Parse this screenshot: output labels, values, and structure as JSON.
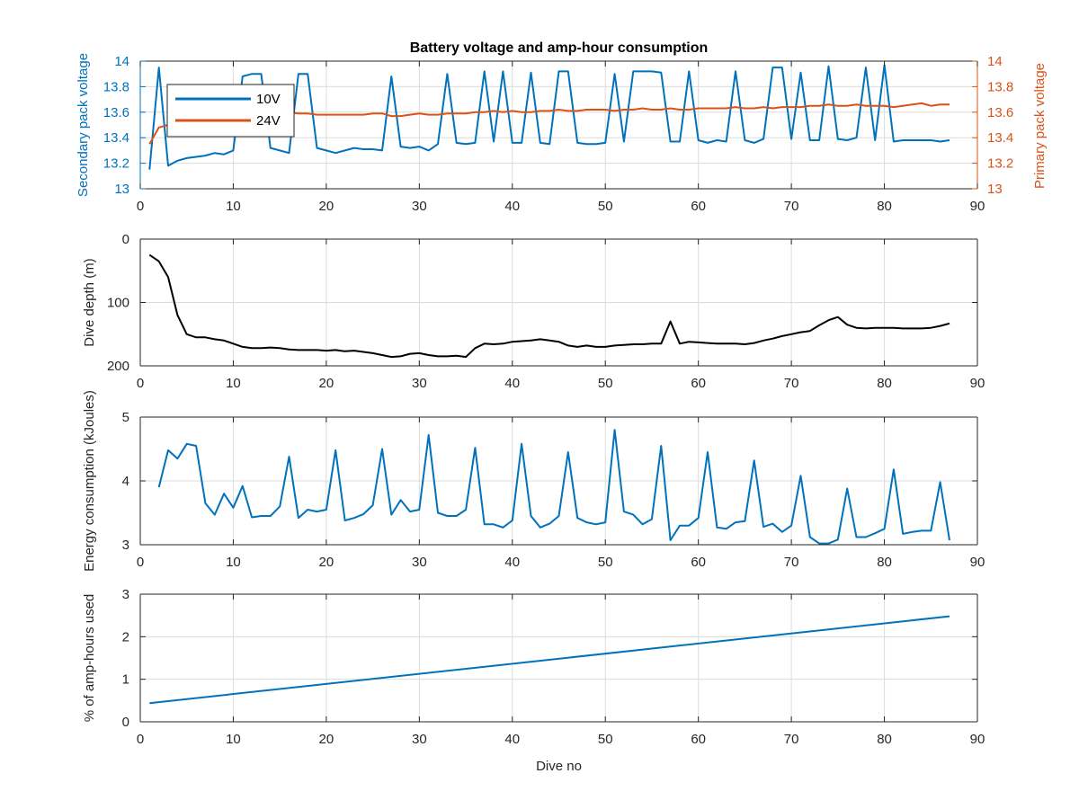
{
  "colors": {
    "series_10v": "#0072BD",
    "series_24v": "#D95319",
    "depth_line": "#000000",
    "axis": "#262626",
    "grid": "#dcdcdc",
    "background": "#ffffff"
  },
  "chart_data": [
    {
      "id": "voltage",
      "type": "line",
      "title": "Battery voltage and amp-hour consumption",
      "xlabel": "",
      "ylabel": "Secondary pack voltage",
      "ylabel_right": "Primary pack voltage",
      "xlim": [
        0,
        90
      ],
      "ylim": [
        13,
        14
      ],
      "ylim_right": [
        13,
        14
      ],
      "xticks": [
        0,
        10,
        20,
        30,
        40,
        50,
        60,
        70,
        80,
        90
      ],
      "yticks": [
        13,
        13.2,
        13.4,
        13.6,
        13.8,
        14
      ],
      "yticks_right": [
        13,
        13.2,
        13.4,
        13.6,
        13.8,
        14
      ],
      "grid": true,
      "legend": "top-left",
      "series": [
        {
          "name": "10V",
          "color": "#0072BD",
          "axis": "left",
          "x": [
            1,
            2,
            3,
            4,
            5,
            6,
            7,
            8,
            9,
            10,
            11,
            12,
            13,
            14,
            15,
            16,
            17,
            18,
            19,
            20,
            21,
            22,
            23,
            24,
            25,
            26,
            27,
            28,
            29,
            30,
            31,
            32,
            33,
            34,
            35,
            36,
            37,
            38,
            39,
            40,
            41,
            42,
            43,
            44,
            45,
            46,
            47,
            48,
            49,
            50,
            51,
            52,
            53,
            54,
            55,
            56,
            57,
            58,
            59,
            60,
            61,
            62,
            63,
            64,
            65,
            66,
            67,
            68,
            69,
            70,
            71,
            72,
            73,
            74,
            75,
            76,
            77,
            78,
            79,
            80,
            81,
            82,
            83,
            84,
            85,
            86,
            87
          ],
          "y": [
            13.15,
            13.95,
            13.18,
            13.22,
            13.24,
            13.25,
            13.26,
            13.28,
            13.27,
            13.3,
            13.88,
            13.9,
            13.9,
            13.32,
            13.3,
            13.28,
            13.9,
            13.9,
            13.32,
            13.3,
            13.28,
            13.3,
            13.32,
            13.31,
            13.31,
            13.3,
            13.88,
            13.33,
            13.32,
            13.33,
            13.3,
            13.35,
            13.9,
            13.36,
            13.35,
            13.36,
            13.92,
            13.37,
            13.92,
            13.36,
            13.36,
            13.91,
            13.36,
            13.35,
            13.92,
            13.92,
            13.36,
            13.35,
            13.35,
            13.36,
            13.9,
            13.37,
            13.92,
            13.92,
            13.92,
            13.91,
            13.37,
            13.37,
            13.92,
            13.38,
            13.36,
            13.38,
            13.37,
            13.92,
            13.38,
            13.36,
            13.39,
            13.95,
            13.95,
            13.39,
            13.91,
            13.38,
            13.38,
            13.96,
            13.39,
            13.38,
            13.4,
            13.95,
            13.38,
            13.97,
            13.37,
            13.38,
            13.38,
            13.38,
            13.38,
            13.37,
            13.38
          ]
        },
        {
          "name": "24V",
          "color": "#D95319",
          "axis": "right",
          "x": [
            1,
            2,
            3,
            4,
            5,
            6,
            7,
            8,
            9,
            10,
            11,
            12,
            13,
            14,
            15,
            16,
            17,
            18,
            19,
            20,
            21,
            22,
            23,
            24,
            25,
            26,
            27,
            28,
            29,
            30,
            31,
            32,
            33,
            34,
            35,
            36,
            37,
            38,
            39,
            40,
            41,
            42,
            43,
            44,
            45,
            46,
            47,
            48,
            49,
            50,
            51,
            52,
            53,
            54,
            55,
            56,
            57,
            58,
            59,
            60,
            61,
            62,
            63,
            64,
            65,
            66,
            67,
            68,
            69,
            70,
            71,
            72,
            73,
            74,
            75,
            76,
            77,
            78,
            79,
            80,
            81,
            82,
            83,
            84,
            85,
            86,
            87
          ],
          "y": [
            13.35,
            13.48,
            13.5,
            13.52,
            13.54,
            13.55,
            13.56,
            13.56,
            13.57,
            13.57,
            13.58,
            13.58,
            13.58,
            13.59,
            13.59,
            13.6,
            13.59,
            13.59,
            13.58,
            13.58,
            13.58,
            13.58,
            13.58,
            13.58,
            13.59,
            13.59,
            13.57,
            13.57,
            13.58,
            13.59,
            13.58,
            13.58,
            13.59,
            13.59,
            13.59,
            13.6,
            13.6,
            13.61,
            13.6,
            13.61,
            13.6,
            13.6,
            13.61,
            13.61,
            13.62,
            13.61,
            13.61,
            13.62,
            13.62,
            13.62,
            13.61,
            13.62,
            13.62,
            13.63,
            13.62,
            13.62,
            13.63,
            13.62,
            13.62,
            13.63,
            13.63,
            13.63,
            13.63,
            13.64,
            13.63,
            13.63,
            13.64,
            13.63,
            13.64,
            13.64,
            13.64,
            13.65,
            13.65,
            13.66,
            13.65,
            13.65,
            13.66,
            13.65,
            13.65,
            13.65,
            13.64,
            13.65,
            13.66,
            13.67,
            13.65,
            13.66,
            13.66
          ]
        }
      ]
    },
    {
      "id": "depth",
      "type": "line",
      "title": "",
      "xlabel": "",
      "ylabel": "Dive depth (m)",
      "xlim": [
        0,
        90
      ],
      "ylim": [
        0,
        200
      ],
      "y_reversed": true,
      "xticks": [
        0,
        10,
        20,
        30,
        40,
        50,
        60,
        70,
        80,
        90
      ],
      "yticks": [
        0,
        100,
        200
      ],
      "grid": true,
      "series": [
        {
          "color": "#000000",
          "x": [
            1,
            2,
            3,
            4,
            5,
            6,
            7,
            8,
            9,
            10,
            11,
            12,
            13,
            14,
            15,
            16,
            17,
            18,
            19,
            20,
            21,
            22,
            23,
            24,
            25,
            26,
            27,
            28,
            29,
            30,
            31,
            32,
            33,
            34,
            35,
            36,
            37,
            38,
            39,
            40,
            41,
            42,
            43,
            44,
            45,
            46,
            47,
            48,
            49,
            50,
            51,
            52,
            53,
            54,
            55,
            56,
            57,
            58,
            59,
            60,
            61,
            62,
            63,
            64,
            65,
            66,
            67,
            68,
            69,
            70,
            71,
            72,
            73,
            74,
            75,
            76,
            77,
            78,
            79,
            80,
            81,
            82,
            83,
            84,
            85,
            86,
            87
          ],
          "y": [
            25,
            35,
            60,
            120,
            150,
            155,
            155,
            158,
            160,
            165,
            170,
            172,
            172,
            171,
            172,
            174,
            175,
            175,
            175,
            176,
            175,
            177,
            176,
            178,
            180,
            183,
            186,
            185,
            181,
            180,
            183,
            185,
            185,
            184,
            186,
            172,
            165,
            166,
            165,
            162,
            161,
            160,
            158,
            160,
            162,
            168,
            170,
            168,
            170,
            170,
            168,
            167,
            166,
            166,
            165,
            165,
            130,
            165,
            162,
            163,
            164,
            165,
            165,
            165,
            166,
            164,
            160,
            157,
            153,
            150,
            147,
            145,
            136,
            128,
            123,
            135,
            140,
            141,
            140,
            140,
            140,
            141,
            141,
            141,
            140,
            137,
            133
          ]
        }
      ]
    },
    {
      "id": "energy",
      "type": "line",
      "title": "",
      "xlabel": "",
      "ylabel": "Energy consumption (kJoules)",
      "xlim": [
        0,
        90
      ],
      "ylim": [
        3,
        5
      ],
      "xticks": [
        0,
        10,
        20,
        30,
        40,
        50,
        60,
        70,
        80,
        90
      ],
      "yticks": [
        3,
        4,
        5
      ],
      "grid": true,
      "series": [
        {
          "color": "#0072BD",
          "x": [
            2,
            3,
            4,
            5,
            6,
            7,
            8,
            9,
            10,
            11,
            12,
            13,
            14,
            15,
            16,
            17,
            18,
            19,
            20,
            21,
            22,
            23,
            24,
            25,
            26,
            27,
            28,
            29,
            30,
            31,
            32,
            33,
            34,
            35,
            36,
            37,
            38,
            39,
            40,
            41,
            42,
            43,
            44,
            45,
            46,
            47,
            48,
            49,
            50,
            51,
            52,
            53,
            54,
            55,
            56,
            57,
            58,
            59,
            60,
            61,
            62,
            63,
            64,
            65,
            66,
            67,
            68,
            69,
            70,
            71,
            72,
            73,
            74,
            75,
            76,
            77,
            78,
            79,
            80,
            81,
            82,
            83,
            84,
            85,
            86,
            87
          ],
          "y": [
            3.9,
            4.48,
            4.35,
            4.58,
            4.55,
            3.65,
            3.47,
            3.8,
            3.58,
            3.92,
            3.43,
            3.45,
            3.45,
            3.6,
            4.38,
            3.42,
            3.55,
            3.52,
            3.55,
            4.48,
            3.38,
            3.42,
            3.48,
            3.62,
            4.5,
            3.47,
            3.7,
            3.52,
            3.55,
            4.72,
            3.5,
            3.45,
            3.45,
            3.55,
            4.52,
            3.32,
            3.32,
            3.27,
            3.38,
            4.58,
            3.45,
            3.27,
            3.33,
            3.45,
            4.45,
            3.42,
            3.35,
            3.32,
            3.35,
            4.8,
            3.52,
            3.47,
            3.32,
            3.4,
            4.55,
            3.07,
            3.3,
            3.3,
            3.42,
            4.45,
            3.27,
            3.25,
            3.35,
            3.37,
            4.32,
            3.28,
            3.33,
            3.2,
            3.3,
            4.08,
            3.12,
            3.02,
            3.02,
            3.08,
            3.88,
            3.12,
            3.12,
            3.18,
            3.25,
            4.18,
            3.17,
            3.2,
            3.22,
            3.22,
            3.98,
            3.07
          ]
        }
      ]
    },
    {
      "id": "amphours",
      "type": "line",
      "title": "",
      "xlabel": "Dive no",
      "ylabel": "% of amp-hours used",
      "xlim": [
        0,
        90
      ],
      "ylim": [
        0,
        3
      ],
      "xticks": [
        0,
        10,
        20,
        30,
        40,
        50,
        60,
        70,
        80,
        90
      ],
      "yticks": [
        0,
        1,
        2,
        3
      ],
      "grid": true,
      "series": [
        {
          "color": "#0072BD",
          "x": [
            1,
            87
          ],
          "y": [
            0.44,
            2.48
          ]
        }
      ]
    }
  ]
}
